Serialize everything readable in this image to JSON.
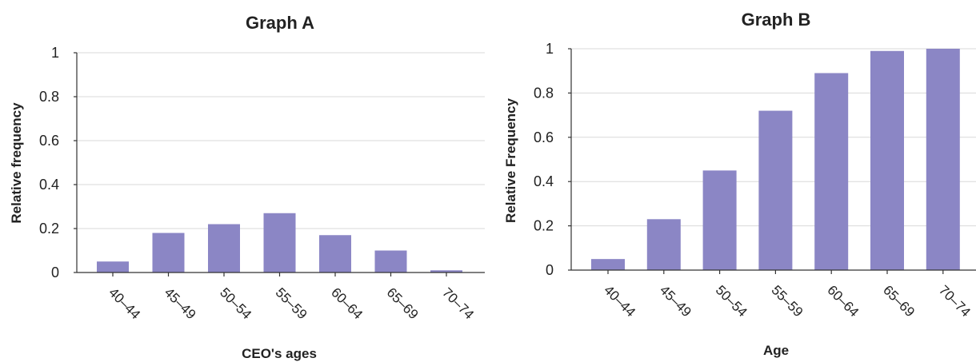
{
  "chart_data": [
    {
      "type": "bar",
      "title": "Graph A",
      "xlabel": "CEO's ages",
      "ylabel": "Relative frequency",
      "categories": [
        "40–44",
        "45–49",
        "50–54",
        "55–59",
        "60–64",
        "65–69",
        "70–74"
      ],
      "values": [
        0.05,
        0.18,
        0.22,
        0.27,
        0.17,
        0.1,
        0.01
      ],
      "ylim": [
        0,
        1
      ],
      "yticks": [
        "0",
        "0.2",
        "0.4",
        "0.6",
        "0.8",
        "1"
      ],
      "grid": true,
      "bar_color": "#8b86c5"
    },
    {
      "type": "bar",
      "title": "Graph B",
      "xlabel": "Age",
      "ylabel": "Relative Frequency",
      "categories": [
        "40–44",
        "45–49",
        "50–54",
        "55–59",
        "60–64",
        "65–69",
        "70–74"
      ],
      "values": [
        0.05,
        0.23,
        0.45,
        0.72,
        0.89,
        0.99,
        1.0
      ],
      "ylim": [
        0,
        1
      ],
      "yticks": [
        "0",
        "0.2",
        "0.4",
        "0.6",
        "0.8",
        "1"
      ],
      "grid": true,
      "bar_color": "#8b86c5"
    }
  ]
}
